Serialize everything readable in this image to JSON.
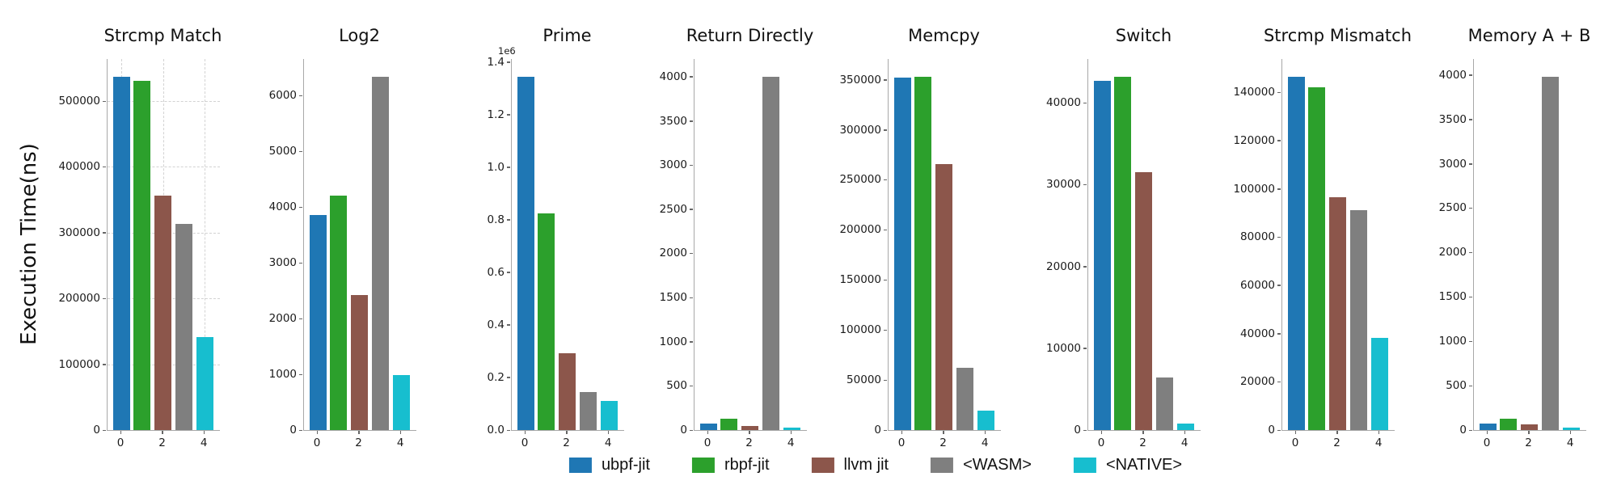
{
  "figure": {
    "ylabel": "Execution Time(ns)",
    "series": [
      {
        "name": "ubpf-jit",
        "color": "#1f77b4"
      },
      {
        "name": "rbpf-jit",
        "color": "#2ca02c"
      },
      {
        "name": "llvm jit",
        "color": "#8c564b"
      },
      {
        "name": "<WASM>",
        "color": "#7f7f7f"
      },
      {
        "name": "<NATIVE>",
        "color": "#17becf"
      }
    ]
  },
  "chart_data": [
    {
      "type": "bar",
      "title": "Strcmp Match",
      "categories": [
        "ubpf-jit",
        "rbpf-jit",
        "llvm jit",
        "<WASM>",
        "<NATIVE>"
      ],
      "values": [
        537000,
        531000,
        356000,
        313000,
        141000
      ],
      "ylim": [
        0,
        563900
      ],
      "yticks": [
        0,
        100000,
        200000,
        300000,
        400000,
        500000
      ],
      "yticklabels": [
        "0",
        "100000",
        "200000",
        "300000",
        "400000",
        "500000"
      ],
      "xticks": [
        0,
        2,
        4
      ],
      "xticklabels": [
        "0",
        "2",
        "4"
      ],
      "grid": true,
      "offset_text": ""
    },
    {
      "type": "bar",
      "title": "Log2",
      "categories": [
        "ubpf-jit",
        "rbpf-jit",
        "llvm jit",
        "<WASM>",
        "<NATIVE>"
      ],
      "values": [
        3860,
        4210,
        2430,
        6340,
        990
      ],
      "ylim": [
        0,
        6660
      ],
      "yticks": [
        0,
        1000,
        2000,
        3000,
        4000,
        5000,
        6000
      ],
      "yticklabels": [
        "0",
        "1000",
        "2000",
        "3000",
        "4000",
        "5000",
        "6000"
      ],
      "xticks": [
        0,
        2,
        4
      ],
      "xticklabels": [
        "0",
        "2",
        "4"
      ],
      "grid": false,
      "offset_text": ""
    },
    {
      "type": "bar",
      "title": "Prime",
      "categories": [
        "ubpf-jit",
        "rbpf-jit",
        "llvm jit",
        "<WASM>",
        "<NATIVE>"
      ],
      "values": [
        1344000,
        823000,
        292000,
        146000,
        111000
      ],
      "ylim": [
        0,
        1411000
      ],
      "yticks": [
        0,
        200000,
        400000,
        600000,
        800000,
        1000000,
        1200000,
        1400000
      ],
      "yticklabels": [
        "0.0",
        "0.2",
        "0.4",
        "0.6",
        "0.8",
        "1.0",
        "1.2",
        "1.4"
      ],
      "xticks": [
        0,
        2,
        4
      ],
      "xticklabels": [
        "0",
        "2",
        "4"
      ],
      "grid": false,
      "offset_text": "1e6"
    },
    {
      "type": "bar",
      "title": "Return Directly",
      "categories": [
        "ubpf-jit",
        "rbpf-jit",
        "llvm jit",
        "<WASM>",
        "<NATIVE>"
      ],
      "values": [
        70,
        125,
        42,
        4000,
        25
      ],
      "ylim": [
        0,
        4200
      ],
      "yticks": [
        0,
        500,
        1000,
        1500,
        2000,
        2500,
        3000,
        3500,
        4000
      ],
      "yticklabels": [
        "0",
        "500",
        "1000",
        "1500",
        "2000",
        "2500",
        "3000",
        "3500",
        "4000"
      ],
      "xticks": [
        0,
        2,
        4
      ],
      "xticklabels": [
        "0",
        "2",
        "4"
      ],
      "grid": false,
      "offset_text": ""
    },
    {
      "type": "bar",
      "title": "Memcpy",
      "categories": [
        "ubpf-jit",
        "rbpf-jit",
        "llvm jit",
        "<WASM>",
        "<NATIVE>"
      ],
      "values": [
        352000,
        353000,
        266000,
        62000,
        19000
      ],
      "ylim": [
        0,
        370700
      ],
      "yticks": [
        0,
        50000,
        100000,
        150000,
        200000,
        250000,
        300000,
        350000
      ],
      "yticklabels": [
        "0",
        "50000",
        "100000",
        "150000",
        "200000",
        "250000",
        "300000",
        "350000"
      ],
      "xticks": [
        0,
        2,
        4
      ],
      "xticklabels": [
        "0",
        "2",
        "4"
      ],
      "grid": false,
      "offset_text": ""
    },
    {
      "type": "bar",
      "title": "Switch",
      "categories": [
        "ubpf-jit",
        "rbpf-jit",
        "llvm jit",
        "<WASM>",
        "<NATIVE>"
      ],
      "values": [
        42700,
        43200,
        31500,
        6400,
        750
      ],
      "ylim": [
        0,
        45360
      ],
      "yticks": [
        0,
        10000,
        20000,
        30000,
        40000
      ],
      "yticklabels": [
        "0",
        "10000",
        "20000",
        "30000",
        "40000"
      ],
      "xticks": [
        0,
        2,
        4
      ],
      "xticklabels": [
        "0",
        "2",
        "4"
      ],
      "grid": false,
      "offset_text": ""
    },
    {
      "type": "bar",
      "title": "Strcmp Mismatch",
      "categories": [
        "ubpf-jit",
        "rbpf-jit",
        "llvm jit",
        "<WASM>",
        "<NATIVE>"
      ],
      "values": [
        146500,
        142000,
        96500,
        91000,
        38200
      ],
      "ylim": [
        0,
        153800
      ],
      "yticks": [
        0,
        20000,
        40000,
        60000,
        80000,
        100000,
        120000,
        140000
      ],
      "yticklabels": [
        "0",
        "20000",
        "40000",
        "60000",
        "80000",
        "100000",
        "120000",
        "140000"
      ],
      "xticks": [
        0,
        2,
        4
      ],
      "xticklabels": [
        "0",
        "2",
        "4"
      ],
      "grid": false,
      "offset_text": ""
    },
    {
      "type": "bar",
      "title": "Memory A + B",
      "categories": [
        "ubpf-jit",
        "rbpf-jit",
        "llvm jit",
        "<WASM>",
        "<NATIVE>"
      ],
      "values": [
        70,
        130,
        60,
        3980,
        25
      ],
      "ylim": [
        0,
        4180
      ],
      "yticks": [
        0,
        500,
        1000,
        1500,
        2000,
        2500,
        3000,
        3500,
        4000
      ],
      "yticklabels": [
        "0",
        "500",
        "1000",
        "1500",
        "2000",
        "2500",
        "3000",
        "3500",
        "4000"
      ],
      "xticks": [
        0,
        2,
        4
      ],
      "xticklabels": [
        "0",
        "2",
        "4"
      ],
      "grid": false,
      "offset_text": ""
    }
  ],
  "legend": {
    "labels": [
      "ubpf-jit",
      "rbpf-jit",
      "llvm jit",
      "<WASM>",
      "<NATIVE>"
    ]
  }
}
